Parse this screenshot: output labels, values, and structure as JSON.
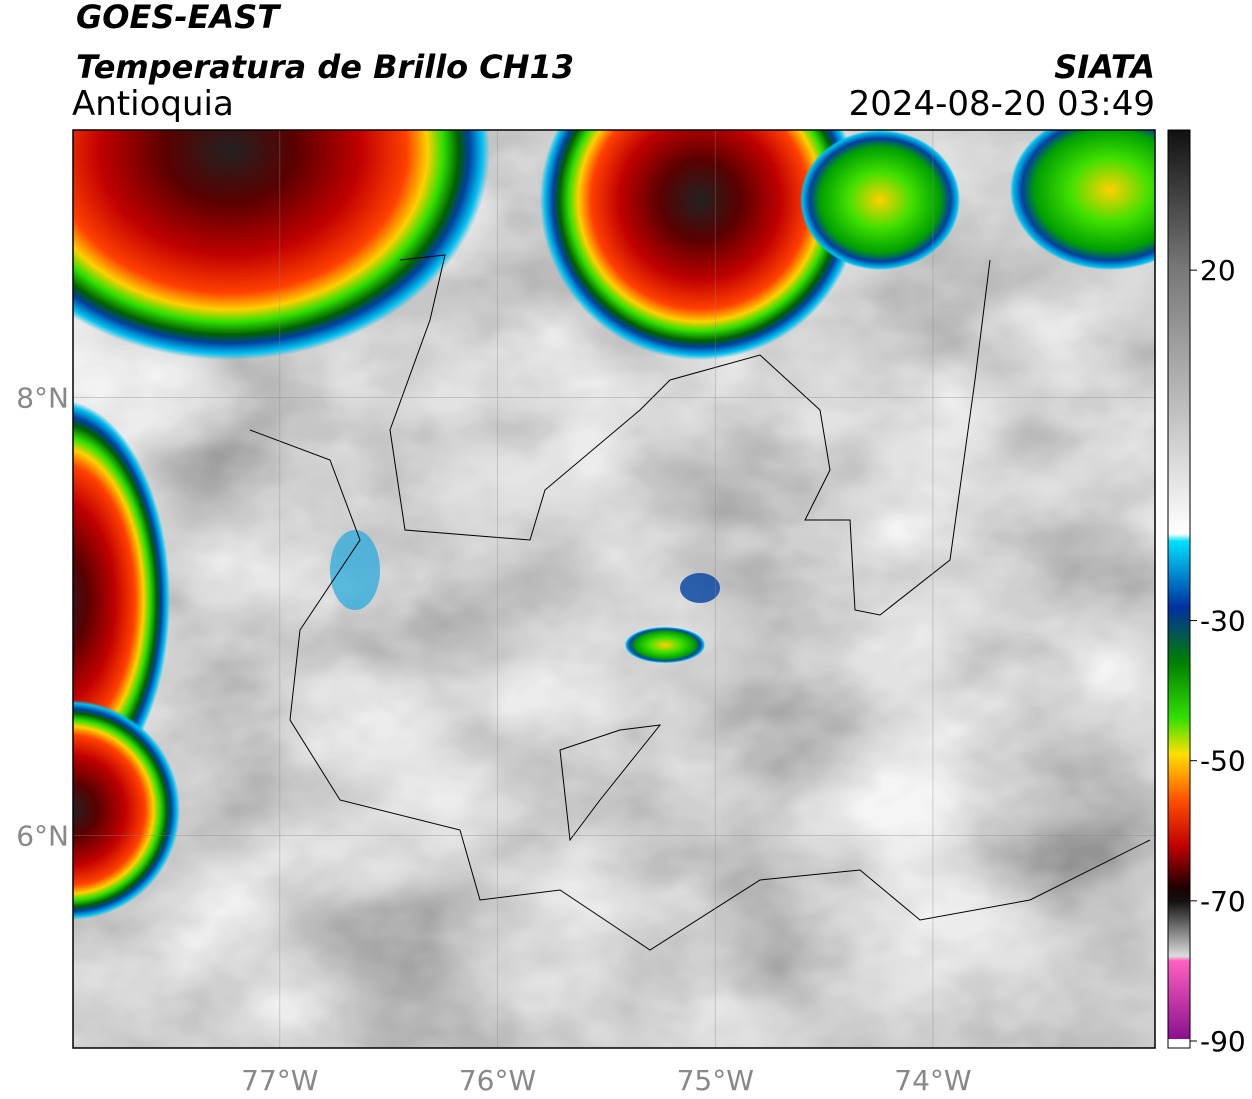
{
  "header": {
    "title": "GOES-EAST",
    "subtitle": "Temperatura de Brillo CH13",
    "region": "Antioquia",
    "source": "SIATA",
    "timestamp": "2024-08-20 03:49"
  },
  "map": {
    "xlim": [
      -77.95,
      -72.98
    ],
    "ylim": [
      5.03,
      9.22
    ],
    "xticks": [
      {
        "value": -77,
        "label": "77°W"
      },
      {
        "value": -76,
        "label": "76°W"
      },
      {
        "value": -75,
        "label": "75°W"
      },
      {
        "value": -74,
        "label": "74°W"
      }
    ],
    "yticks": [
      {
        "value": 8,
        "label": "8°N"
      },
      {
        "value": 6,
        "label": "6°N"
      }
    ],
    "grid": true
  },
  "colorbar": {
    "lim": [
      -91,
      40
    ],
    "ticks": [
      20,
      -30,
      -50,
      -70,
      -90
    ]
  }
}
